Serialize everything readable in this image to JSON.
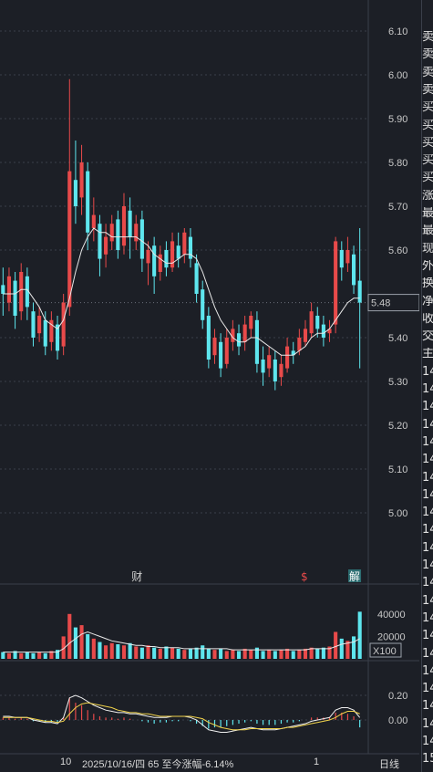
{
  "chart_data": {
    "type": "candlestick",
    "price_axis": {
      "ticks": [
        "6.10",
        "6.00",
        "5.90",
        "5.80",
        "5.70",
        "5.60",
        "5.40",
        "5.30",
        "5.20",
        "5.10",
        "5.00"
      ],
      "ylim": [
        4.92,
        6.15
      ],
      "current_price": "5.48"
    },
    "volume_axis": {
      "ticks": [
        "40000",
        "20000"
      ],
      "unit": "X100"
    },
    "macd_axis": {
      "ticks": [
        "0.20",
        "0.00"
      ]
    },
    "markers": [
      {
        "label": "财",
        "index": 22
      },
      {
        "label": "$",
        "index": 50
      },
      {
        "label": "解",
        "index": 58
      }
    ],
    "x_labels": [
      "10",
      "1"
    ],
    "period_label": "日线",
    "info_text": "2025/10/16/四 65 至今涨幅-6.14%",
    "colors": {
      "up": "#e84a4a",
      "down": "#5ee6ee",
      "ma": "#e8e8e8",
      "macd_dif": "#f0f0f0",
      "macd_dea": "#f0d24a"
    },
    "candles": [
      [
        5.52,
        5.5,
        5.56,
        5.45
      ],
      [
        5.48,
        5.54,
        5.56,
        5.46
      ],
      [
        5.53,
        5.45,
        5.55,
        5.42
      ],
      [
        5.46,
        5.55,
        5.57,
        5.44
      ],
      [
        5.54,
        5.47,
        5.56,
        5.44
      ],
      [
        5.46,
        5.4,
        5.48,
        5.38
      ],
      [
        5.41,
        5.45,
        5.47,
        5.39
      ],
      [
        5.44,
        5.38,
        5.46,
        5.36
      ],
      [
        5.39,
        5.44,
        5.46,
        5.37
      ],
      [
        5.43,
        5.37,
        5.45,
        5.35
      ],
      [
        5.38,
        5.48,
        5.5,
        5.36
      ],
      [
        5.47,
        5.78,
        5.99,
        5.45
      ],
      [
        5.76,
        5.7,
        5.85,
        5.66
      ],
      [
        5.72,
        5.8,
        5.84,
        5.68
      ],
      [
        5.78,
        5.64,
        5.8,
        5.6
      ],
      [
        5.65,
        5.68,
        5.72,
        5.62
      ],
      [
        5.66,
        5.58,
        5.68,
        5.54
      ],
      [
        5.59,
        5.63,
        5.66,
        5.56
      ],
      [
        5.62,
        5.66,
        5.68,
        5.6
      ],
      [
        5.67,
        5.6,
        5.69,
        5.58
      ],
      [
        5.61,
        5.7,
        5.73,
        5.59
      ],
      [
        5.69,
        5.63,
        5.72,
        5.58
      ],
      [
        5.62,
        5.66,
        5.68,
        5.6
      ],
      [
        5.67,
        5.58,
        5.69,
        5.55
      ],
      [
        5.57,
        5.6,
        5.62,
        5.52
      ],
      [
        5.61,
        5.54,
        5.63,
        5.5
      ],
      [
        5.55,
        5.59,
        5.61,
        5.53
      ],
      [
        5.6,
        5.56,
        5.62,
        5.54
      ],
      [
        5.56,
        5.62,
        5.64,
        5.55
      ],
      [
        5.61,
        5.58,
        5.64,
        5.56
      ],
      [
        5.59,
        5.64,
        5.65,
        5.57
      ],
      [
        5.63,
        5.58,
        5.65,
        5.56
      ],
      [
        5.57,
        5.5,
        5.59,
        5.48
      ],
      [
        5.51,
        5.44,
        5.53,
        5.42
      ],
      [
        5.45,
        5.35,
        5.47,
        5.33
      ],
      [
        5.36,
        5.4,
        5.42,
        5.34
      ],
      [
        5.39,
        5.33,
        5.41,
        5.31
      ],
      [
        5.34,
        5.4,
        5.42,
        5.33
      ],
      [
        5.39,
        5.42,
        5.44,
        5.37
      ],
      [
        5.41,
        5.38,
        5.43,
        5.36
      ],
      [
        5.39,
        5.43,
        5.45,
        5.37
      ],
      [
        5.42,
        5.45,
        5.46,
        5.4
      ],
      [
        5.44,
        5.34,
        5.46,
        5.32
      ],
      [
        5.35,
        5.32,
        5.38,
        5.29
      ],
      [
        5.33,
        5.36,
        5.38,
        5.31
      ],
      [
        5.35,
        5.3,
        5.37,
        5.28
      ],
      [
        5.31,
        5.34,
        5.36,
        5.29
      ],
      [
        5.33,
        5.38,
        5.4,
        5.32
      ],
      [
        5.37,
        5.36,
        5.39,
        5.34
      ],
      [
        5.37,
        5.4,
        5.42,
        5.36
      ],
      [
        5.39,
        5.42,
        5.44,
        5.38
      ],
      [
        5.41,
        5.46,
        5.48,
        5.4
      ],
      [
        5.45,
        5.42,
        5.47,
        5.4
      ],
      [
        5.43,
        5.4,
        5.45,
        5.38
      ],
      [
        5.41,
        5.42,
        5.44,
        5.39
      ],
      [
        5.43,
        5.62,
        5.63,
        5.41
      ],
      [
        5.6,
        5.56,
        5.62,
        5.53
      ],
      [
        5.57,
        5.6,
        5.63,
        5.55
      ],
      [
        5.59,
        5.52,
        5.61,
        5.5
      ],
      [
        5.53,
        5.48,
        5.65,
        5.33
      ]
    ],
    "ma": [
      5.5,
      5.5,
      5.5,
      5.51,
      5.51,
      5.49,
      5.47,
      5.44,
      5.43,
      5.42,
      5.44,
      5.49,
      5.55,
      5.6,
      5.63,
      5.65,
      5.64,
      5.64,
      5.63,
      5.63,
      5.63,
      5.63,
      5.63,
      5.62,
      5.61,
      5.59,
      5.58,
      5.57,
      5.57,
      5.58,
      5.59,
      5.59,
      5.58,
      5.55,
      5.51,
      5.47,
      5.44,
      5.42,
      5.4,
      5.39,
      5.39,
      5.4,
      5.4,
      5.39,
      5.38,
      5.37,
      5.36,
      5.36,
      5.36,
      5.37,
      5.38,
      5.4,
      5.41,
      5.41,
      5.42,
      5.44,
      5.46,
      5.48,
      5.49,
      5.49
    ],
    "volume": [
      6,
      5,
      7,
      5,
      6,
      5,
      6,
      5,
      7,
      8,
      20,
      40,
      28,
      30,
      22,
      18,
      15,
      12,
      14,
      13,
      12,
      14,
      11,
      10,
      12,
      10,
      9,
      11,
      10,
      9,
      8,
      9,
      10,
      12,
      9,
      8,
      9,
      7,
      8,
      7,
      9,
      8,
      10,
      7,
      8,
      7,
      8,
      9,
      7,
      8,
      9,
      10,
      9,
      10,
      11,
      24,
      18,
      16,
      20,
      42
    ],
    "volume_ma": [
      6,
      6,
      6,
      6,
      6,
      6,
      6,
      6,
      6,
      6,
      9,
      14,
      18,
      22,
      24,
      22,
      20,
      18,
      16,
      15,
      14,
      13,
      12,
      12,
      11,
      11,
      10,
      10,
      10,
      10,
      9,
      9,
      9,
      9,
      9,
      9,
      9,
      9,
      8,
      8,
      8,
      8,
      8,
      8,
      8,
      8,
      8,
      8,
      8,
      8,
      8,
      9,
      9,
      9,
      9,
      11,
      13,
      14,
      15,
      18
    ],
    "macd_hist": [
      0.02,
      0.02,
      0.01,
      0.02,
      0.01,
      -0.01,
      -0.01,
      -0.02,
      -0.02,
      -0.02,
      0.02,
      0.18,
      0.14,
      0.12,
      0.08,
      0.05,
      0.03,
      0.02,
      0.02,
      0.01,
      0.02,
      0.01,
      0.0,
      -0.01,
      -0.02,
      -0.03,
      -0.02,
      -0.02,
      -0.01,
      -0.01,
      0.0,
      -0.01,
      -0.03,
      -0.05,
      -0.07,
      -0.06,
      -0.06,
      -0.05,
      -0.04,
      -0.03,
      -0.02,
      -0.01,
      -0.03,
      -0.04,
      -0.04,
      -0.04,
      -0.03,
      -0.02,
      -0.02,
      -0.01,
      0.0,
      0.02,
      0.02,
      0.02,
      0.02,
      0.06,
      0.06,
      0.05,
      0.03,
      -0.06
    ],
    "macd_dif": [
      0.03,
      0.03,
      0.02,
      0.02,
      0.02,
      0.0,
      -0.01,
      -0.02,
      -0.02,
      -0.03,
      0.02,
      0.18,
      0.2,
      0.18,
      0.15,
      0.12,
      0.1,
      0.08,
      0.07,
      0.06,
      0.06,
      0.05,
      0.05,
      0.04,
      0.03,
      0.02,
      0.02,
      0.02,
      0.03,
      0.03,
      0.03,
      0.02,
      0.0,
      -0.04,
      -0.08,
      -0.09,
      -0.1,
      -0.1,
      -0.09,
      -0.08,
      -0.07,
      -0.06,
      -0.07,
      -0.08,
      -0.08,
      -0.08,
      -0.07,
      -0.06,
      -0.05,
      -0.04,
      -0.03,
      -0.01,
      0.0,
      0.01,
      0.02,
      0.08,
      0.1,
      0.1,
      0.08,
      0.02
    ],
    "macd_dea": [
      0.02,
      0.02,
      0.02,
      0.02,
      0.02,
      0.01,
      0.0,
      -0.01,
      -0.01,
      -0.02,
      -0.01,
      0.05,
      0.1,
      0.13,
      0.14,
      0.13,
      0.12,
      0.11,
      0.1,
      0.08,
      0.07,
      0.06,
      0.06,
      0.05,
      0.05,
      0.04,
      0.03,
      0.03,
      0.03,
      0.03,
      0.03,
      0.03,
      0.02,
      0.01,
      -0.02,
      -0.04,
      -0.06,
      -0.07,
      -0.08,
      -0.08,
      -0.08,
      -0.07,
      -0.07,
      -0.07,
      -0.07,
      -0.07,
      -0.07,
      -0.06,
      -0.06,
      -0.05,
      -0.04,
      -0.03,
      -0.02,
      -0.01,
      0.0,
      0.02,
      0.05,
      0.07,
      0.07,
      0.05
    ]
  },
  "side_panel": [
    "卖",
    "卖",
    "卖",
    "卖",
    "买",
    "买",
    "买",
    "买",
    "买",
    "涨",
    "最",
    "最",
    "现",
    "外",
    "换",
    "净",
    "收",
    "交",
    "主",
    "14",
    "14",
    "14",
    "14",
    "14",
    "14",
    "14",
    "14",
    "14",
    "14",
    "14",
    "14",
    "14",
    "14",
    "14",
    "14",
    "14",
    "14",
    "14",
    "14",
    "14",
    "14",
    "15"
  ]
}
